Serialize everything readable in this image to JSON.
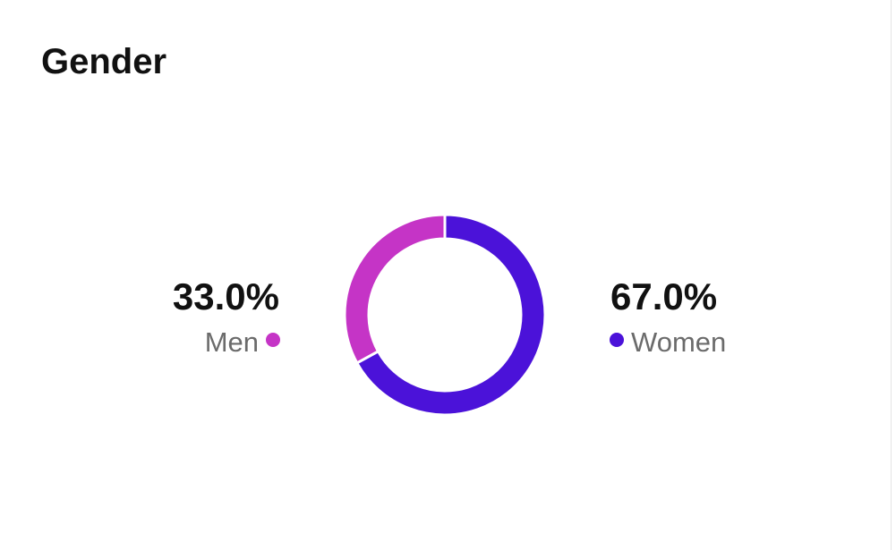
{
  "chart_data": {
    "type": "donut",
    "title": "Gender",
    "categories": [
      "Men",
      "Women"
    ],
    "values": [
      33.0,
      67.0
    ],
    "value_labels": [
      "33.0%",
      "67.0%"
    ],
    "colors": [
      "#c534c6",
      "#4b12d9"
    ]
  }
}
